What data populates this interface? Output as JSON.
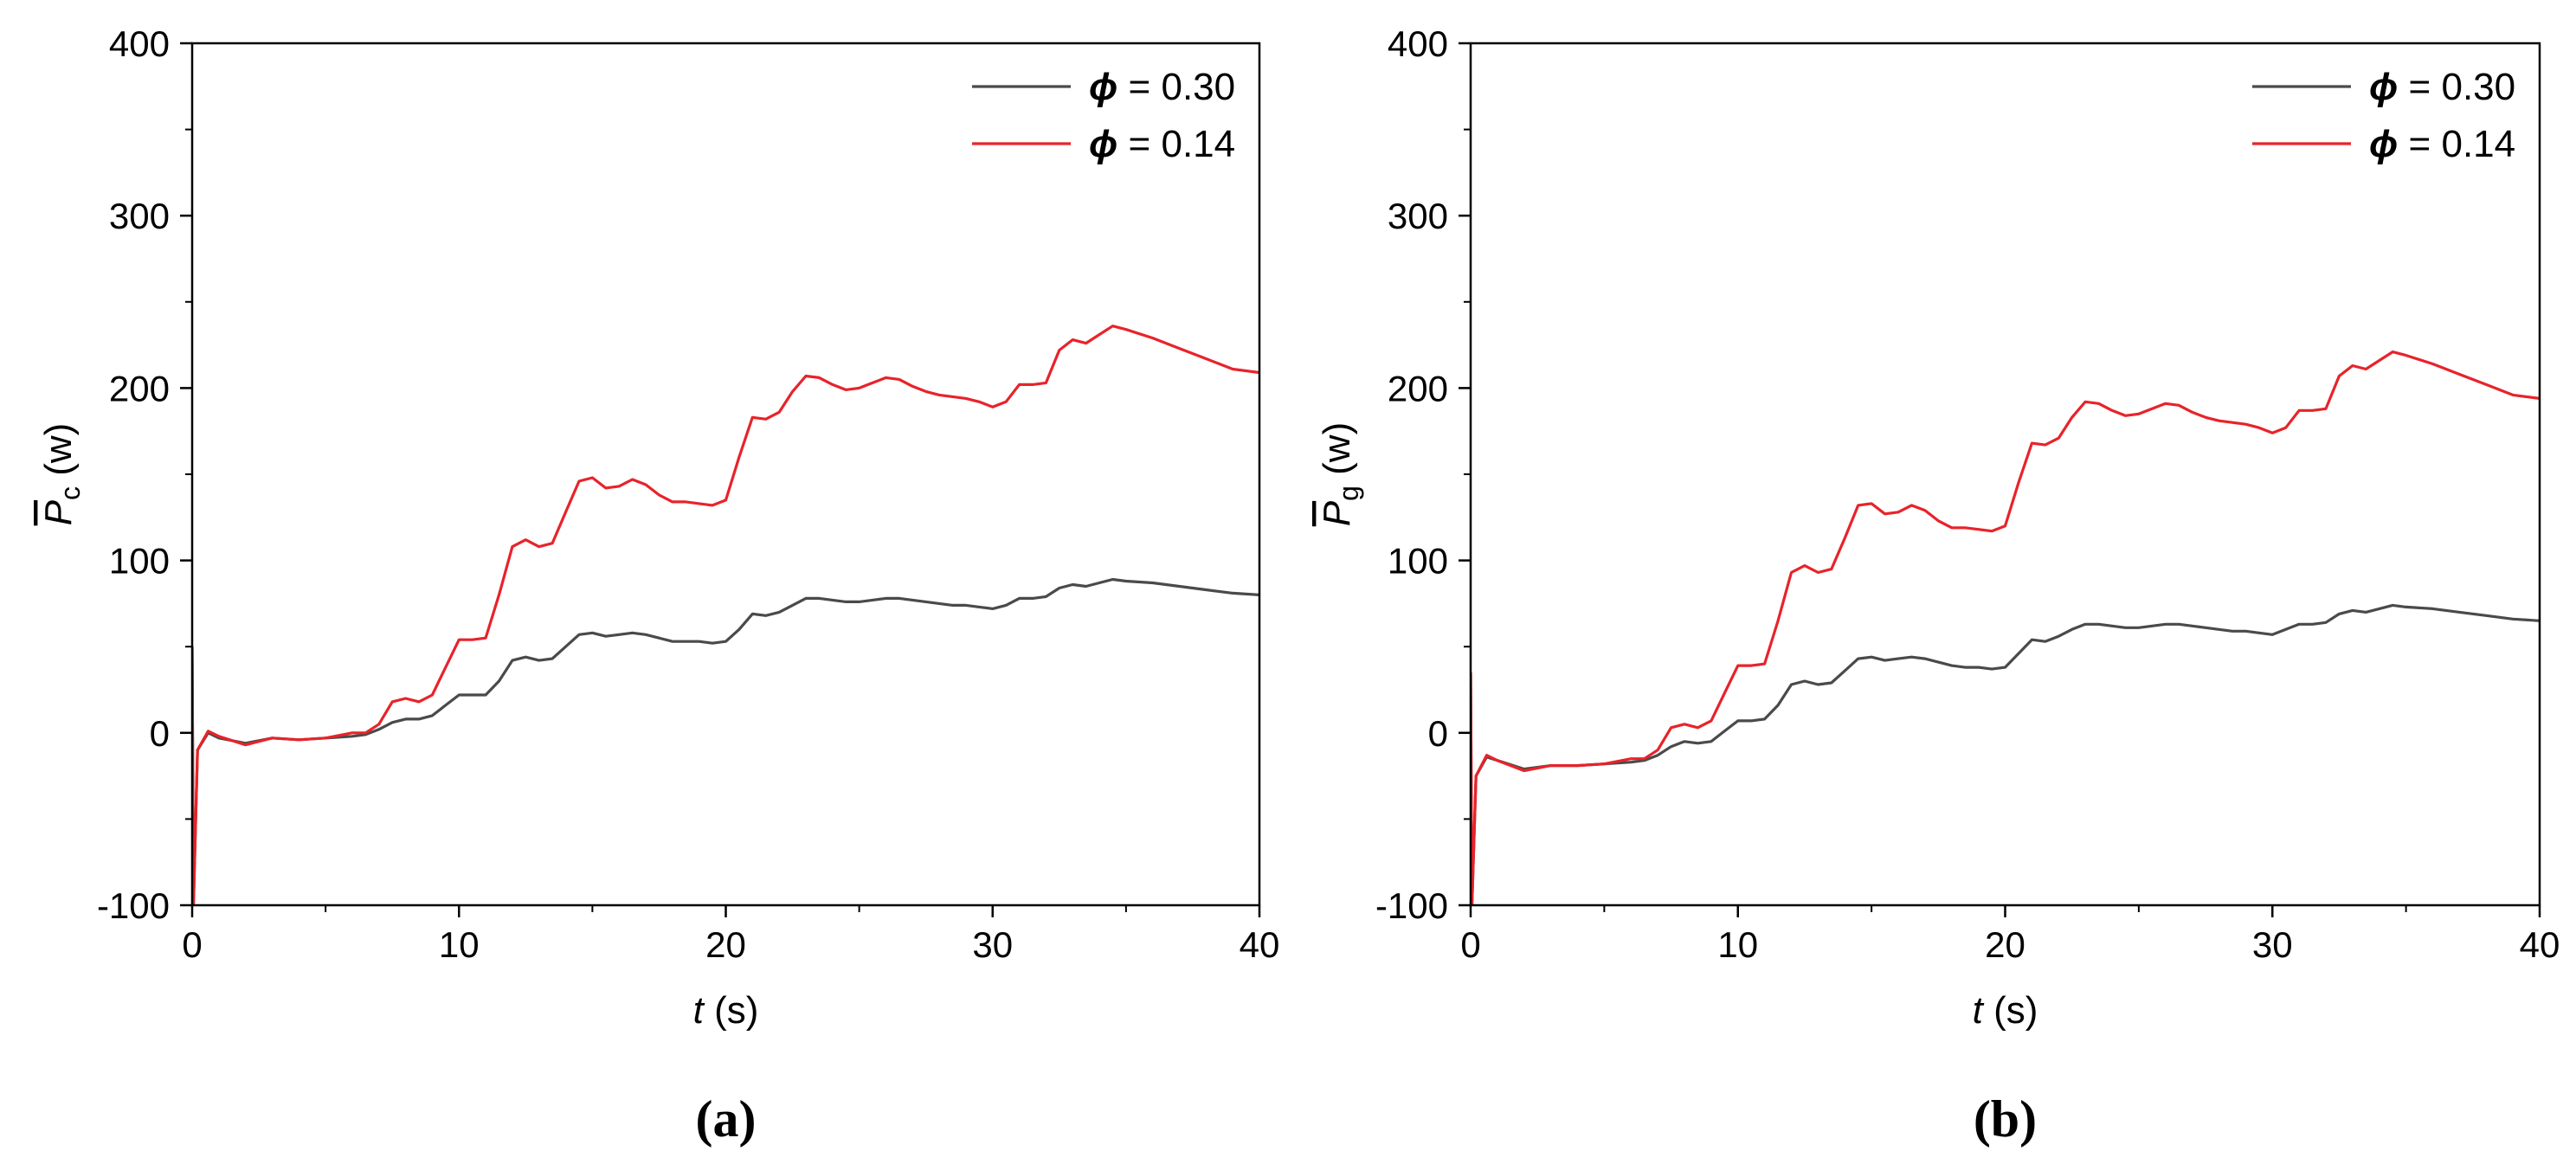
{
  "figure": {
    "panels": [
      {
        "panel_label": "(a)",
        "ylabel_symbol": "P",
        "ylabel_sub": "c",
        "ylabel_unit": "(w)",
        "xlabel_symbol": "t",
        "xlabel_unit": "(s)"
      },
      {
        "panel_label": "(b)",
        "ylabel_symbol": "P",
        "ylabel_sub": "g",
        "ylabel_unit": "(w)",
        "xlabel_symbol": "t",
        "xlabel_unit": "(s)"
      }
    ],
    "legend": [
      {
        "symbol": "ϕ",
        "text": " = 0.30",
        "color": "#4a4a4a"
      },
      {
        "symbol": "ϕ",
        "text": " = 0.14",
        "color": "#e8232a"
      }
    ]
  },
  "chart_data": [
    {
      "type": "line",
      "title": "",
      "xlabel": "t (s)",
      "ylabel": "P̄c (w)",
      "xlim": [
        0,
        40
      ],
      "ylim": [
        -100,
        400
      ],
      "xticks": [
        0,
        10,
        20,
        30,
        40
      ],
      "yticks": [
        -100,
        0,
        100,
        200,
        300,
        400
      ],
      "legend_position": "top-right",
      "grid": false,
      "series": [
        {
          "name": "ϕ = 0.30",
          "color": "#4a4a4a",
          "x": [
            0,
            0.05,
            0.2,
            0.6,
            1,
            2,
            3,
            4,
            5,
            6,
            6.5,
            7,
            7.5,
            8,
            8.5,
            9,
            9.5,
            10,
            10.5,
            11,
            11.5,
            12,
            12.5,
            13,
            13.5,
            14,
            14.5,
            15,
            15.5,
            16,
            16.5,
            17,
            17.5,
            18,
            18.5,
            19,
            19.5,
            20,
            20.5,
            21,
            21.5,
            22,
            22.5,
            23,
            23.5,
            24,
            24.5,
            25,
            25.5,
            26,
            26.5,
            27,
            27.5,
            28,
            28.5,
            29,
            29.5,
            30,
            30.5,
            31,
            31.5,
            32,
            32.5,
            33,
            33.5,
            34,
            34.5,
            35,
            36,
            37,
            38,
            39,
            40
          ],
          "y": [
            50,
            -100,
            -10,
            0,
            -3,
            -6,
            -3,
            -4,
            -3,
            -2,
            -1,
            2,
            6,
            8,
            8,
            10,
            16,
            22,
            22,
            22,
            30,
            42,
            44,
            42,
            43,
            50,
            57,
            58,
            56,
            57,
            58,
            57,
            55,
            53,
            53,
            53,
            52,
            53,
            60,
            69,
            68,
            70,
            74,
            78,
            78,
            77,
            76,
            76,
            77,
            78,
            78,
            77,
            76,
            75,
            74,
            74,
            73,
            72,
            74,
            78,
            78,
            79,
            84,
            86,
            85,
            87,
            89,
            88,
            87,
            85,
            83,
            81,
            80
          ]
        },
        {
          "name": "ϕ = 0.14",
          "color": "#e8232a",
          "x": [
            0,
            0.05,
            0.2,
            0.6,
            1,
            2,
            3,
            4,
            5,
            6,
            6.5,
            7,
            7.5,
            8,
            8.5,
            9,
            9.5,
            10,
            10.5,
            11,
            11.5,
            12,
            12.5,
            13,
            13.5,
            14,
            14.5,
            15,
            15.5,
            16,
            16.5,
            17,
            17.5,
            18,
            18.5,
            19,
            19.5,
            20,
            20.5,
            21,
            21.5,
            22,
            22.5,
            23,
            23.5,
            24,
            24.5,
            25,
            25.5,
            26,
            26.5,
            27,
            27.5,
            28,
            28.5,
            29,
            29.5,
            30,
            30.5,
            31,
            31.5,
            32,
            32.5,
            33,
            33.5,
            34,
            34.5,
            35,
            36,
            37,
            38,
            39,
            40
          ],
          "y": [
            50,
            -100,
            -10,
            1,
            -2,
            -7,
            -3,
            -4,
            -3,
            0,
            0,
            5,
            18,
            20,
            18,
            22,
            38,
            54,
            54,
            55,
            80,
            108,
            112,
            108,
            110,
            128,
            146,
            148,
            142,
            143,
            147,
            144,
            138,
            134,
            134,
            133,
            132,
            135,
            160,
            183,
            182,
            186,
            198,
            207,
            206,
            202,
            199,
            200,
            203,
            206,
            205,
            201,
            198,
            196,
            195,
            194,
            192,
            189,
            192,
            202,
            202,
            203,
            222,
            228,
            226,
            231,
            236,
            234,
            229,
            223,
            217,
            211,
            209
          ]
        }
      ]
    },
    {
      "type": "line",
      "title": "",
      "xlabel": "t (s)",
      "ylabel": "P̄g (w)",
      "xlim": [
        0,
        40
      ],
      "ylim": [
        -100,
        400
      ],
      "xticks": [
        0,
        10,
        20,
        30,
        40
      ],
      "yticks": [
        -100,
        0,
        100,
        200,
        300,
        400
      ],
      "legend_position": "top-right",
      "grid": false,
      "series": [
        {
          "name": "ϕ = 0.30",
          "color": "#4a4a4a",
          "x": [
            0,
            0.05,
            0.2,
            0.6,
            1,
            2,
            3,
            4,
            5,
            6,
            6.5,
            7,
            7.5,
            8,
            8.5,
            9,
            9.5,
            10,
            10.5,
            11,
            11.5,
            12,
            12.5,
            13,
            13.5,
            14,
            14.5,
            15,
            15.5,
            16,
            16.5,
            17,
            17.5,
            18,
            18.5,
            19,
            19.5,
            20,
            20.5,
            21,
            21.5,
            22,
            22.5,
            23,
            23.5,
            24,
            24.5,
            25,
            25.5,
            26,
            26.5,
            27,
            27.5,
            28,
            28.5,
            29,
            29.5,
            30,
            30.5,
            31,
            31.5,
            32,
            32.5,
            33,
            33.5,
            34,
            34.5,
            35,
            36,
            37,
            38,
            39,
            40
          ],
          "y": [
            35,
            -100,
            -25,
            -14,
            -16,
            -21,
            -19,
            -19,
            -18,
            -17,
            -16,
            -13,
            -8,
            -5,
            -6,
            -5,
            1,
            7,
            7,
            8,
            16,
            28,
            30,
            28,
            29,
            36,
            43,
            44,
            42,
            43,
            44,
            43,
            41,
            39,
            38,
            38,
            37,
            38,
            46,
            54,
            53,
            56,
            60,
            63,
            63,
            62,
            61,
            61,
            62,
            63,
            63,
            62,
            61,
            60,
            59,
            59,
            58,
            57,
            60,
            63,
            63,
            64,
            69,
            71,
            70,
            72,
            74,
            73,
            72,
            70,
            68,
            66,
            65
          ]
        },
        {
          "name": "ϕ = 0.14",
          "color": "#e8232a",
          "x": [
            0,
            0.05,
            0.2,
            0.6,
            1,
            2,
            3,
            4,
            5,
            6,
            6.5,
            7,
            7.5,
            8,
            8.5,
            9,
            9.5,
            10,
            10.5,
            11,
            11.5,
            12,
            12.5,
            13,
            13.5,
            14,
            14.5,
            15,
            15.5,
            16,
            16.5,
            17,
            17.5,
            18,
            18.5,
            19,
            19.5,
            20,
            20.5,
            21,
            21.5,
            22,
            22.5,
            23,
            23.5,
            24,
            24.5,
            25,
            25.5,
            26,
            26.5,
            27,
            27.5,
            28,
            28.5,
            29,
            29.5,
            30,
            30.5,
            31,
            31.5,
            32,
            32.5,
            33,
            33.5,
            34,
            34.5,
            35,
            36,
            37,
            38,
            39,
            40
          ],
          "y": [
            35,
            -100,
            -25,
            -13,
            -16,
            -22,
            -19,
            -19,
            -18,
            -15,
            -15,
            -10,
            3,
            5,
            3,
            7,
            23,
            39,
            39,
            40,
            65,
            93,
            97,
            93,
            95,
            113,
            132,
            133,
            127,
            128,
            132,
            129,
            123,
            119,
            119,
            118,
            117,
            120,
            145,
            168,
            167,
            171,
            183,
            192,
            191,
            187,
            184,
            185,
            188,
            191,
            190,
            186,
            183,
            181,
            180,
            179,
            177,
            174,
            177,
            187,
            187,
            188,
            207,
            213,
            211,
            216,
            221,
            219,
            214,
            208,
            202,
            196,
            194
          ]
        }
      ]
    }
  ]
}
